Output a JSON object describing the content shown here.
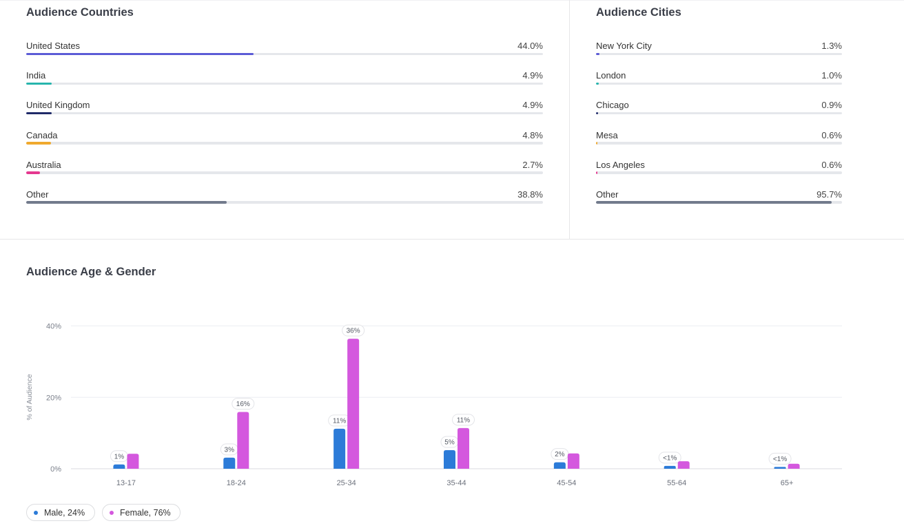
{
  "countries": {
    "title": "Audience Countries",
    "items": [
      {
        "label": "United States",
        "value_label": "44.0%",
        "fraction": 0.44,
        "color": "#5b5bd6"
      },
      {
        "label": "India",
        "value_label": "4.9%",
        "fraction": 0.049,
        "color": "#27b5ad"
      },
      {
        "label": "United Kingdom",
        "value_label": "4.9%",
        "fraction": 0.049,
        "color": "#1f2a68"
      },
      {
        "label": "Canada",
        "value_label": "4.8%",
        "fraction": 0.048,
        "color": "#f0a92d"
      },
      {
        "label": "Australia",
        "value_label": "2.7%",
        "fraction": 0.027,
        "color": "#e5388f"
      },
      {
        "label": "Other",
        "value_label": "38.8%",
        "fraction": 0.388,
        "color": "#727a8c"
      }
    ]
  },
  "cities": {
    "title": "Audience Cities",
    "items": [
      {
        "label": "New York City",
        "value_label": "1.3%",
        "fraction": 0.013,
        "color": "#5b5bd6"
      },
      {
        "label": "London",
        "value_label": "1.0%",
        "fraction": 0.01,
        "color": "#27b5ad"
      },
      {
        "label": "Chicago",
        "value_label": "0.9%",
        "fraction": 0.009,
        "color": "#1f2a68"
      },
      {
        "label": "Mesa",
        "value_label": "0.6%",
        "fraction": 0.006,
        "color": "#f0a92d"
      },
      {
        "label": "Los Angeles",
        "value_label": "0.6%",
        "fraction": 0.006,
        "color": "#e5388f"
      },
      {
        "label": "Other",
        "value_label": "95.7%",
        "fraction": 0.957,
        "color": "#727a8c"
      }
    ]
  },
  "age_gender": {
    "title": "Audience Age & Gender",
    "legend": {
      "male": "Male, 24%",
      "female": "Female, 76%"
    }
  },
  "chart_data": {
    "type": "bar",
    "title": "Audience Age & Gender",
    "ylabel": "% of Audience",
    "xlabel": "",
    "ylim": [
      0,
      40
    ],
    "yticks": [
      0,
      20,
      40
    ],
    "ytick_labels": [
      "0%",
      "20%",
      "40%"
    ],
    "grid": true,
    "legend_position": "bottom-left",
    "categories": [
      "13-17",
      "18-24",
      "25-34",
      "35-44",
      "45-54",
      "55-64",
      "65+"
    ],
    "series": [
      {
        "name": "Male, 24%",
        "color": "#2c7bd8",
        "values": [
          1.2,
          3.1,
          11.2,
          5.2,
          1.8,
          0.8,
          0.5
        ],
        "labels": [
          "1%",
          "3%",
          "11%",
          "5%",
          "2%",
          "<1%",
          "<1%"
        ]
      },
      {
        "name": "Female, 76%",
        "color": "#d458de",
        "values": [
          4.2,
          15.9,
          36.4,
          11.4,
          4.3,
          2.1,
          1.4
        ],
        "labels": [
          "",
          "16%",
          "36%",
          "11%",
          "",
          "",
          ""
        ]
      }
    ]
  }
}
